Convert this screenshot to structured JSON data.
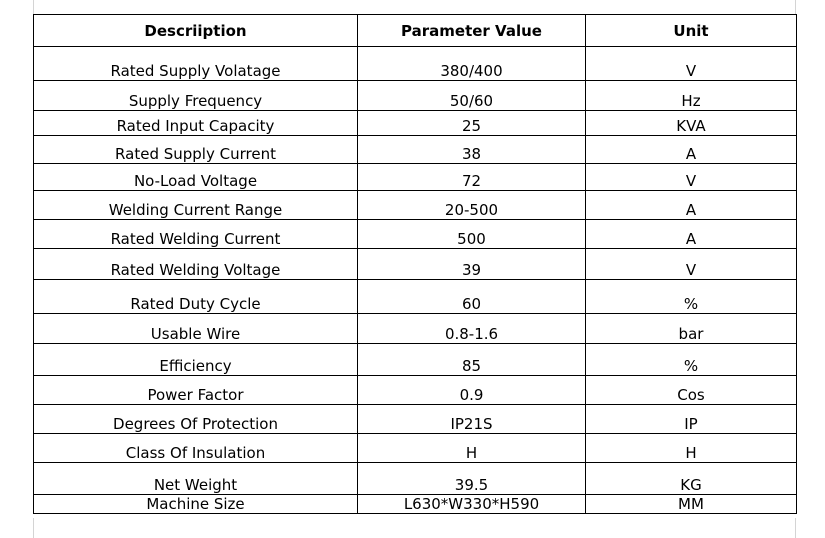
{
  "table": {
    "headers": [
      "Descriiption",
      "Parameter Value",
      "Unit"
    ],
    "rows": [
      {
        "description": "Rated Supply Volatage",
        "value": "380/400",
        "unit": "V"
      },
      {
        "description": "Supply Frequency",
        "value": "50/60",
        "unit": "Hz"
      },
      {
        "description": "Rated Input Capacity",
        "value": "25",
        "unit": "KVA"
      },
      {
        "description": "Rated Supply Current",
        "value": "38",
        "unit": "A"
      },
      {
        "description": "No-Load Voltage",
        "value": "72",
        "unit": "V"
      },
      {
        "description": "Welding Current Range",
        "value": "20-500",
        "unit": "A"
      },
      {
        "description": "Rated Welding Current",
        "value": "500",
        "unit": "A"
      },
      {
        "description": "Rated Welding Voltage",
        "value": "39",
        "unit": "V"
      },
      {
        "description": "Rated Duty Cycle",
        "value": "60",
        "unit": "%"
      },
      {
        "description": "Usable Wire",
        "value": "0.8-1.6",
        "unit": "bar"
      },
      {
        "description": "Efficiency",
        "value": "85",
        "unit": "%"
      },
      {
        "description": "Power Factor",
        "value": "0.9",
        "unit": "Cos"
      },
      {
        "description": "Degrees Of Protection",
        "value": "IP21S",
        "unit": "IP"
      },
      {
        "description": "Class Of Insulation",
        "value": "H",
        "unit": "H"
      },
      {
        "description": "Net Weight",
        "value": "39.5",
        "unit": "KG"
      },
      {
        "description": "Machine Size",
        "value": "L630*W330*H590",
        "unit": "MM"
      }
    ]
  }
}
